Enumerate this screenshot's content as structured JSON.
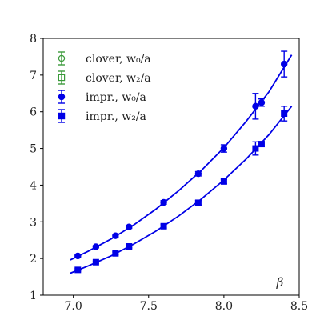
{
  "chart_data": {
    "type": "scatter",
    "xlabel": "β",
    "ylabel": "",
    "xlim": [
      6.8,
      8.5
    ],
    "ylim": [
      1,
      8
    ],
    "xticks": [
      7.0,
      7.5,
      8.0,
      8.5
    ],
    "xtick_labels": [
      "7.0",
      "7.5",
      "8.0",
      "8.5"
    ],
    "yticks": [
      1,
      2,
      3,
      4,
      5,
      6,
      7,
      8
    ],
    "ytick_labels": [
      "1",
      "2",
      "3",
      "4",
      "5",
      "6",
      "7",
      "8"
    ],
    "grid": false,
    "legend_position": "top-left",
    "series": [
      {
        "name": "clover, w₀/a",
        "color": "#3a9a3a",
        "marker": "circle",
        "filled": false,
        "points": []
      },
      {
        "name": "clover, w₂/a",
        "color": "#3a9a3a",
        "marker": "square",
        "filled": false,
        "points": []
      },
      {
        "name": "impr., w₀/a",
        "color": "#0000e6",
        "marker": "circle",
        "filled": true,
        "points": [
          {
            "x": 7.03,
            "y": 2.07,
            "err": 0.03
          },
          {
            "x": 7.15,
            "y": 2.32,
            "err": 0.03
          },
          {
            "x": 7.28,
            "y": 2.62,
            "err": 0.04
          },
          {
            "x": 7.37,
            "y": 2.86,
            "err": 0.04
          },
          {
            "x": 7.6,
            "y": 3.53,
            "err": 0.05
          },
          {
            "x": 7.83,
            "y": 4.31,
            "err": 0.06
          },
          {
            "x": 8.0,
            "y": 5.0,
            "err": 0.1
          },
          {
            "x": 8.21,
            "y": 6.15,
            "err": 0.35
          },
          {
            "x": 8.25,
            "y": 6.25,
            "err": 0.1
          },
          {
            "x": 8.4,
            "y": 7.3,
            "err": 0.35
          }
        ],
        "fit": [
          {
            "x": 6.98,
            "y": 1.96
          },
          {
            "x": 7.1,
            "y": 2.2
          },
          {
            "x": 7.25,
            "y": 2.53
          },
          {
            "x": 7.4,
            "y": 2.91
          },
          {
            "x": 7.55,
            "y": 3.35
          },
          {
            "x": 7.7,
            "y": 3.85
          },
          {
            "x": 7.85,
            "y": 4.4
          },
          {
            "x": 8.0,
            "y": 5.02
          },
          {
            "x": 8.15,
            "y": 5.75
          },
          {
            "x": 8.3,
            "y": 6.55
          },
          {
            "x": 8.45,
            "y": 7.55
          }
        ]
      },
      {
        "name": "impr., w₂/a",
        "color": "#0000e6",
        "marker": "square",
        "filled": true,
        "points": [
          {
            "x": 7.03,
            "y": 1.69,
            "err": 0.03
          },
          {
            "x": 7.15,
            "y": 1.9,
            "err": 0.03
          },
          {
            "x": 7.28,
            "y": 2.14,
            "err": 0.04
          },
          {
            "x": 7.37,
            "y": 2.33,
            "err": 0.04
          },
          {
            "x": 7.6,
            "y": 2.88,
            "err": 0.05
          },
          {
            "x": 7.83,
            "y": 3.52,
            "err": 0.06
          },
          {
            "x": 8.0,
            "y": 4.1,
            "err": 0.06
          },
          {
            "x": 8.21,
            "y": 5.0,
            "err": 0.18
          },
          {
            "x": 8.25,
            "y": 5.12,
            "err": 0.06
          },
          {
            "x": 8.4,
            "y": 5.95,
            "err": 0.2
          }
        ],
        "fit": [
          {
            "x": 6.98,
            "y": 1.6
          },
          {
            "x": 7.1,
            "y": 1.8
          },
          {
            "x": 7.25,
            "y": 2.07
          },
          {
            "x": 7.4,
            "y": 2.39
          },
          {
            "x": 7.55,
            "y": 2.75
          },
          {
            "x": 7.7,
            "y": 3.16
          },
          {
            "x": 7.85,
            "y": 3.62
          },
          {
            "x": 8.0,
            "y": 4.14
          },
          {
            "x": 8.15,
            "y": 4.72
          },
          {
            "x": 8.3,
            "y": 5.38
          },
          {
            "x": 8.45,
            "y": 6.15
          }
        ]
      }
    ]
  }
}
